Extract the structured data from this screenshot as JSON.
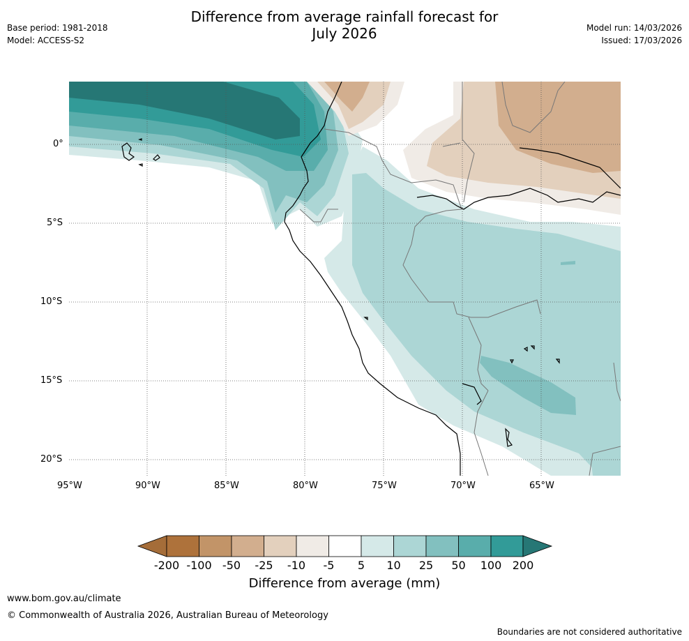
{
  "header": {
    "title_line1": "Difference from average rainfall forecast for",
    "title_line2": "July 2026",
    "base_period": "Base period: 1981-2018",
    "model": "Model: ACCESS-S2",
    "model_run": "Model run: 14/03/2026",
    "issued": "Issued: 17/03/2026"
  },
  "map": {
    "lat_labels": [
      "0°",
      "5°S",
      "10°S",
      "15°S",
      "20°S"
    ],
    "lon_labels": [
      "95°W",
      "90°W",
      "85°W",
      "80°W",
      "75°W",
      "70°W",
      "65°W"
    ]
  },
  "legend": {
    "title": "Difference from average (mm)",
    "ticks": [
      "-200",
      "-100",
      "-50",
      "-25",
      "-10",
      "-5",
      "5",
      "10",
      "25",
      "50",
      "100",
      "200"
    ],
    "colors": [
      "#a56d39",
      "#ae723b",
      "#c29468",
      "#d2ae8e",
      "#e3d0bd",
      "#f0ebe6",
      "#ffffff",
      "#d5e9e8",
      "#acd6d5",
      "#82c0bf",
      "#59adab",
      "#329b98",
      "#267775"
    ]
  },
  "footer": {
    "url": "www.bom.gov.au/climate",
    "copyright": "© Commonwealth of Australia 2026, Australian Bureau of Meteorology",
    "disclaimer": "Boundaries are not considered authoritative"
  }
}
